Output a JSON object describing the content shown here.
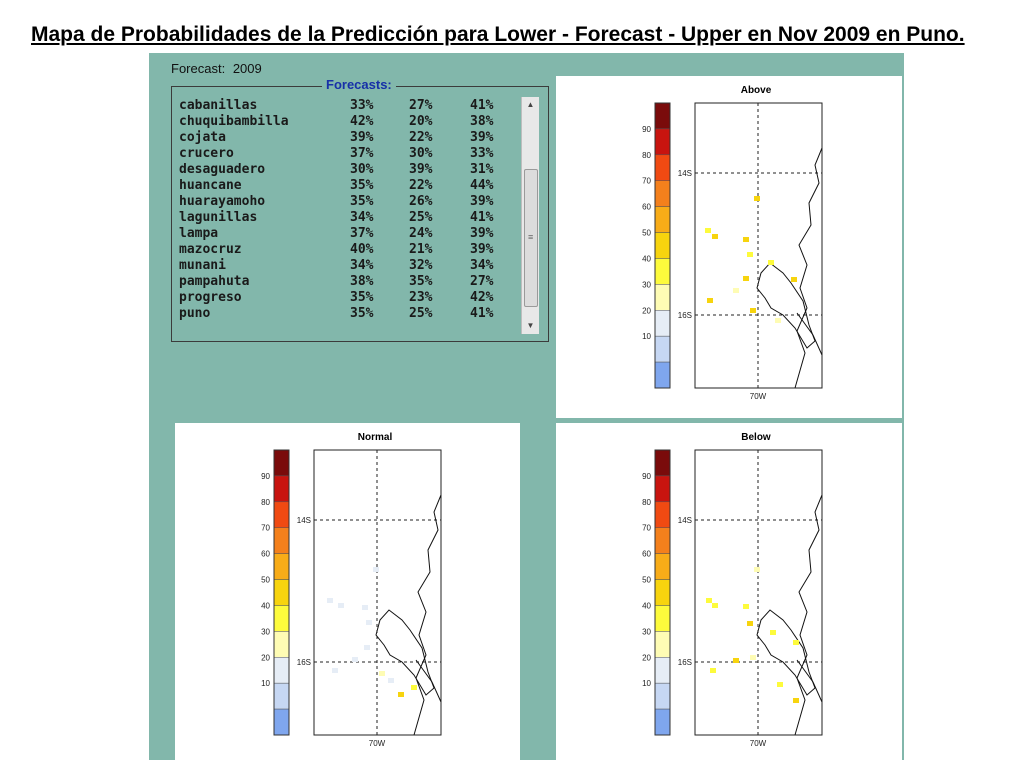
{
  "title": "Mapa de Probabilidades de la Predicción para Lower  -  Forecast  -  Upper en Nov 2009 en Puno.",
  "forecast": {
    "label": "Forecast:",
    "year": "2009"
  },
  "forecasts_legend": "Forecasts:",
  "stations": [
    {
      "name": "cabanillas",
      "lower": "33%",
      "normal": "27%",
      "upper": "41%"
    },
    {
      "name": "chuquibambilla",
      "lower": "42%",
      "normal": "20%",
      "upper": "38%"
    },
    {
      "name": "cojata",
      "lower": "39%",
      "normal": "22%",
      "upper": "39%"
    },
    {
      "name": "crucero",
      "lower": "37%",
      "normal": "30%",
      "upper": "33%"
    },
    {
      "name": "desaguadero",
      "lower": "30%",
      "normal": "39%",
      "upper": "31%"
    },
    {
      "name": "huancane",
      "lower": "35%",
      "normal": "22%",
      "upper": "44%"
    },
    {
      "name": "huarayamoho",
      "lower": "35%",
      "normal": "26%",
      "upper": "39%"
    },
    {
      "name": "lagunillas",
      "lower": "34%",
      "normal": "25%",
      "upper": "41%"
    },
    {
      "name": "lampa",
      "lower": "37%",
      "normal": "24%",
      "upper": "39%"
    },
    {
      "name": "mazocruz",
      "lower": "40%",
      "normal": "21%",
      "upper": "39%"
    },
    {
      "name": "munani",
      "lower": "34%",
      "normal": "32%",
      "upper": "34%"
    },
    {
      "name": "pampahuta",
      "lower": "38%",
      "normal": "35%",
      "upper": "27%"
    },
    {
      "name": "progreso",
      "lower": "35%",
      "normal": "23%",
      "upper": "42%"
    },
    {
      "name": "puno",
      "lower": "35%",
      "normal": "25%",
      "upper": "41%"
    }
  ],
  "colorbar": {
    "ticks": [
      "90",
      "80",
      "70",
      "60",
      "50",
      "40",
      "30",
      "20",
      "10"
    ],
    "colors": [
      "#7a0b0b",
      "#c8140f",
      "#f04a12",
      "#f4801c",
      "#f8ac18",
      "#f7d40e",
      "#fdfb3c",
      "#fefcb4",
      "#e6edf6",
      "#c6d7f3",
      "#7fa6ee"
    ]
  },
  "maps": {
    "above": {
      "title": "Above"
    },
    "normal": {
      "title": "Normal"
    },
    "below": {
      "title": "Below"
    },
    "lat_labels": [
      "14S",
      "16S"
    ],
    "lon_label": "70W"
  }
}
